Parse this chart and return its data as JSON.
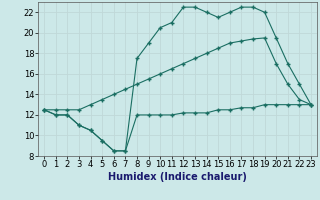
{
  "xlabel": "Humidex (Indice chaleur)",
  "bg_color": "#cce8e8",
  "line_color": "#1a6e62",
  "grid_color": "#b8d8d8",
  "xlim": [
    -0.5,
    23.5
  ],
  "ylim": [
    8,
    23
  ],
  "xticks": [
    0,
    1,
    2,
    3,
    4,
    5,
    6,
    7,
    8,
    9,
    10,
    11,
    12,
    13,
    14,
    15,
    16,
    17,
    18,
    19,
    20,
    21,
    22,
    23
  ],
  "yticks": [
    8,
    10,
    12,
    14,
    16,
    18,
    20,
    22
  ],
  "line1_x": [
    0,
    1,
    2,
    3,
    4,
    5,
    6,
    7,
    8,
    9,
    10,
    11,
    12,
    13,
    14,
    15,
    16,
    17,
    18,
    19,
    20,
    21,
    22,
    23
  ],
  "line1_y": [
    12.5,
    12.0,
    12.0,
    11.0,
    10.5,
    9.5,
    8.5,
    8.5,
    12.0,
    12.0,
    12.0,
    12.0,
    12.2,
    12.2,
    12.2,
    12.5,
    12.5,
    12.7,
    12.7,
    13.0,
    13.0,
    13.0,
    13.0,
    13.0
  ],
  "line2_x": [
    0,
    1,
    2,
    3,
    4,
    5,
    6,
    7,
    8,
    9,
    10,
    11,
    12,
    13,
    14,
    15,
    16,
    17,
    18,
    19,
    20,
    21,
    22,
    23
  ],
  "line2_y": [
    12.5,
    12.0,
    12.0,
    11.0,
    10.5,
    9.5,
    8.5,
    8.5,
    17.5,
    19.0,
    20.5,
    21.0,
    22.5,
    22.5,
    22.0,
    21.5,
    22.0,
    22.5,
    22.5,
    22.0,
    19.5,
    17.0,
    15.0,
    13.0
  ],
  "line3_x": [
    0,
    1,
    2,
    3,
    4,
    5,
    6,
    7,
    8,
    9,
    10,
    11,
    12,
    13,
    14,
    15,
    16,
    17,
    18,
    19,
    20,
    21,
    22,
    23
  ],
  "line3_y": [
    12.5,
    12.5,
    12.5,
    12.5,
    13.0,
    13.5,
    14.0,
    14.5,
    15.0,
    15.5,
    16.0,
    16.5,
    17.0,
    17.5,
    18.0,
    18.5,
    19.0,
    19.2,
    19.4,
    19.5,
    17.0,
    15.0,
    13.5,
    13.0
  ],
  "xlabel_color": "#1a1a6e",
  "xlabel_fontsize": 7,
  "tick_fontsize": 6
}
